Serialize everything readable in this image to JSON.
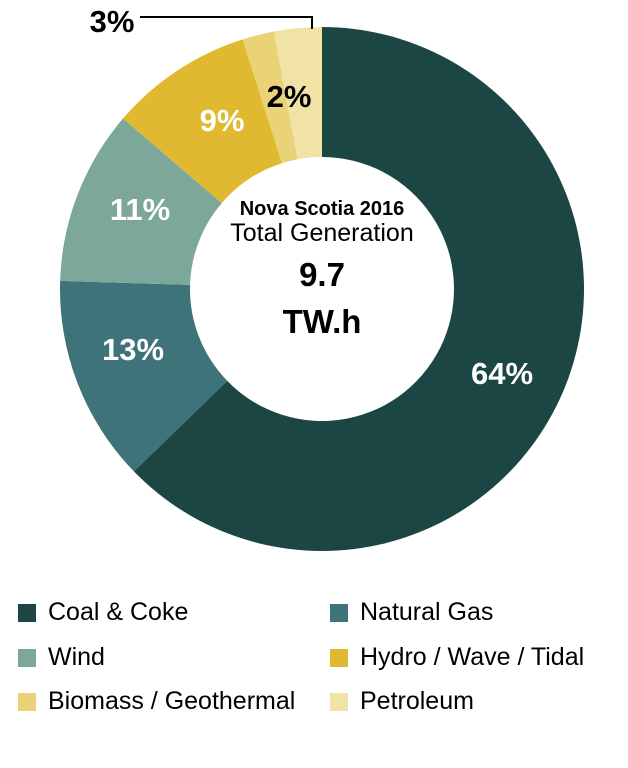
{
  "chart_data": {
    "type": "pie",
    "subtype": "donut",
    "title": "Nova Scotia 2016",
    "center_text": {
      "line1": "Nova Scotia 2016",
      "line2": "Total Generation",
      "value": "9.7",
      "unit": "TW.h"
    },
    "categories": [
      "Coal & Coke",
      "Natural Gas",
      "Wind",
      "Hydro / Wave / Tidal",
      "Biomass / Geothermal",
      "Petroleum"
    ],
    "values": [
      64,
      13,
      11,
      9,
      2,
      3
    ],
    "labels": [
      "64%",
      "13%",
      "11%",
      "9%",
      "2%",
      "3%"
    ],
    "colors": [
      "#1b4644",
      "#3e737a",
      "#7ea79c",
      "#e0b930",
      "#ead277",
      "#f1e3a6"
    ],
    "legend_position": "bottom"
  }
}
